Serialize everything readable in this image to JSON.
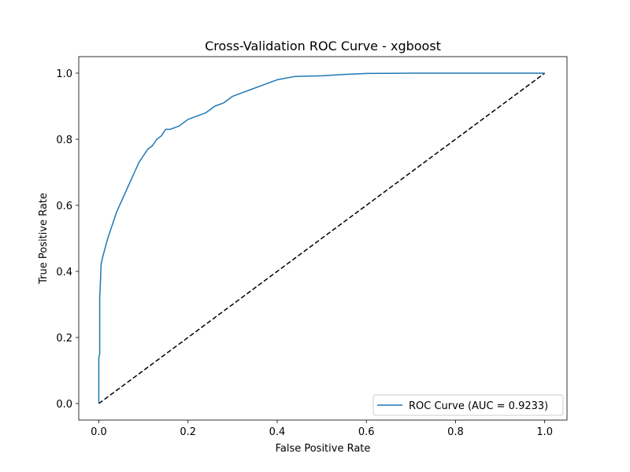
{
  "chart_data": {
    "type": "line",
    "title": "Cross-Validation ROC Curve - xgboost",
    "xlabel": "False Positive Rate",
    "ylabel": "True Positive Rate",
    "xlim": [
      -0.045,
      1.05
    ],
    "ylim": [
      -0.05,
      1.05
    ],
    "xticks": [
      0.0,
      0.2,
      0.4,
      0.6,
      0.8,
      1.0
    ],
    "yticks": [
      0.0,
      0.2,
      0.4,
      0.6,
      0.8,
      1.0
    ],
    "xtick_labels": [
      "0.0",
      "0.2",
      "0.4",
      "0.6",
      "0.8",
      "1.0"
    ],
    "ytick_labels": [
      "0.0",
      "0.2",
      "0.4",
      "0.6",
      "0.8",
      "1.0"
    ],
    "grid": false,
    "legend": {
      "placement": "lower right",
      "entries": [
        "ROC Curve (AUC = 0.9233)"
      ]
    },
    "series": [
      {
        "name": "ROC Curve (AUC = 0.9233)",
        "color": "#1f77b4",
        "style": "solid",
        "x": [
          0.0,
          0.0,
          0.002,
          0.002,
          0.004,
          0.005,
          0.008,
          0.012,
          0.02,
          0.03,
          0.04,
          0.05,
          0.06,
          0.07,
          0.08,
          0.09,
          0.1,
          0.11,
          0.12,
          0.13,
          0.14,
          0.15,
          0.16,
          0.18,
          0.2,
          0.22,
          0.24,
          0.26,
          0.28,
          0.3,
          0.32,
          0.34,
          0.36,
          0.38,
          0.4,
          0.44,
          0.5,
          0.55,
          0.6,
          0.7,
          0.8,
          0.9,
          1.0
        ],
        "y": [
          0.0,
          0.14,
          0.15,
          0.32,
          0.38,
          0.42,
          0.44,
          0.46,
          0.5,
          0.54,
          0.58,
          0.61,
          0.64,
          0.67,
          0.7,
          0.73,
          0.75,
          0.77,
          0.78,
          0.8,
          0.81,
          0.83,
          0.83,
          0.84,
          0.86,
          0.87,
          0.88,
          0.9,
          0.91,
          0.93,
          0.94,
          0.95,
          0.96,
          0.97,
          0.98,
          0.99,
          0.992,
          0.996,
          0.999,
          1.0,
          1.0,
          1.0,
          1.0
        ]
      },
      {
        "color": "#000000",
        "style": "dashed",
        "x": [
          0.0,
          1.0
        ],
        "y": [
          0.0,
          1.0
        ]
      }
    ]
  }
}
